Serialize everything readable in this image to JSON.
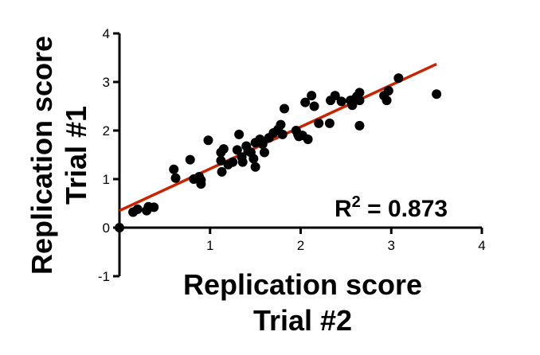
{
  "chart_data": {
    "type": "scatter",
    "xlabel_lines": [
      "Replication score",
      "Trial #2"
    ],
    "ylabel_lines": [
      "Replication score",
      "Trial #1"
    ],
    "xlim": [
      0,
      4
    ],
    "ylim": [
      -1,
      4
    ],
    "xticks": [
      "0",
      "1",
      "2",
      "3",
      "4"
    ],
    "yticks": [
      "-1",
      "0",
      "1",
      "2",
      "3",
      "4"
    ],
    "annotation": {
      "base": "R",
      "sup": "2",
      "text": " = 0.873"
    },
    "fit_line": {
      "x": [
        0.0,
        3.5
      ],
      "y": [
        0.35,
        3.37
      ],
      "color": "#cc2200"
    },
    "point_color": "#000000",
    "points": [
      [
        0.0,
        0.0
      ],
      [
        0.15,
        0.32
      ],
      [
        0.2,
        0.38
      ],
      [
        0.3,
        0.35
      ],
      [
        0.32,
        0.43
      ],
      [
        0.38,
        0.42
      ],
      [
        0.6,
        1.2
      ],
      [
        0.62,
        1.02
      ],
      [
        0.78,
        1.4
      ],
      [
        0.82,
        1.0
      ],
      [
        0.88,
        1.05
      ],
      [
        0.9,
        0.9
      ],
      [
        0.9,
        0.98
      ],
      [
        0.98,
        1.8
      ],
      [
        1.12,
        1.55
      ],
      [
        1.12,
        1.38
      ],
      [
        1.13,
        1.15
      ],
      [
        1.15,
        1.62
      ],
      [
        1.2,
        1.3
      ],
      [
        1.25,
        1.35
      ],
      [
        1.3,
        1.6
      ],
      [
        1.32,
        1.92
      ],
      [
        1.35,
        1.45
      ],
      [
        1.36,
        1.35
      ],
      [
        1.4,
        1.68
      ],
      [
        1.42,
        1.58
      ],
      [
        1.45,
        1.55
      ],
      [
        1.48,
        1.42
      ],
      [
        1.5,
        1.25
      ],
      [
        1.5,
        1.75
      ],
      [
        1.55,
        1.82
      ],
      [
        1.58,
        1.72
      ],
      [
        1.6,
        1.55
      ],
      [
        1.65,
        1.85
      ],
      [
        1.7,
        1.95
      ],
      [
        1.75,
        2.02
      ],
      [
        1.78,
        2.12
      ],
      [
        1.8,
        1.92
      ],
      [
        1.82,
        2.45
      ],
      [
        1.95,
        2.0
      ],
      [
        1.97,
        1.92
      ],
      [
        1.98,
        1.88
      ],
      [
        2.02,
        1.9
      ],
      [
        2.05,
        2.58
      ],
      [
        2.08,
        1.82
      ],
      [
        2.12,
        2.72
      ],
      [
        2.15,
        2.5
      ],
      [
        2.2,
        2.15
      ],
      [
        2.32,
        2.15
      ],
      [
        2.33,
        2.62
      ],
      [
        2.38,
        2.72
      ],
      [
        2.45,
        2.6
      ],
      [
        2.55,
        2.62
      ],
      [
        2.57,
        2.52
      ],
      [
        2.6,
        2.65
      ],
      [
        2.62,
        2.7
      ],
      [
        2.65,
        2.62
      ],
      [
        2.65,
        2.78
      ],
      [
        2.65,
        2.1
      ],
      [
        2.92,
        2.72
      ],
      [
        2.95,
        2.62
      ],
      [
        2.97,
        2.82
      ],
      [
        3.08,
        3.08
      ],
      [
        3.5,
        2.75
      ]
    ]
  }
}
